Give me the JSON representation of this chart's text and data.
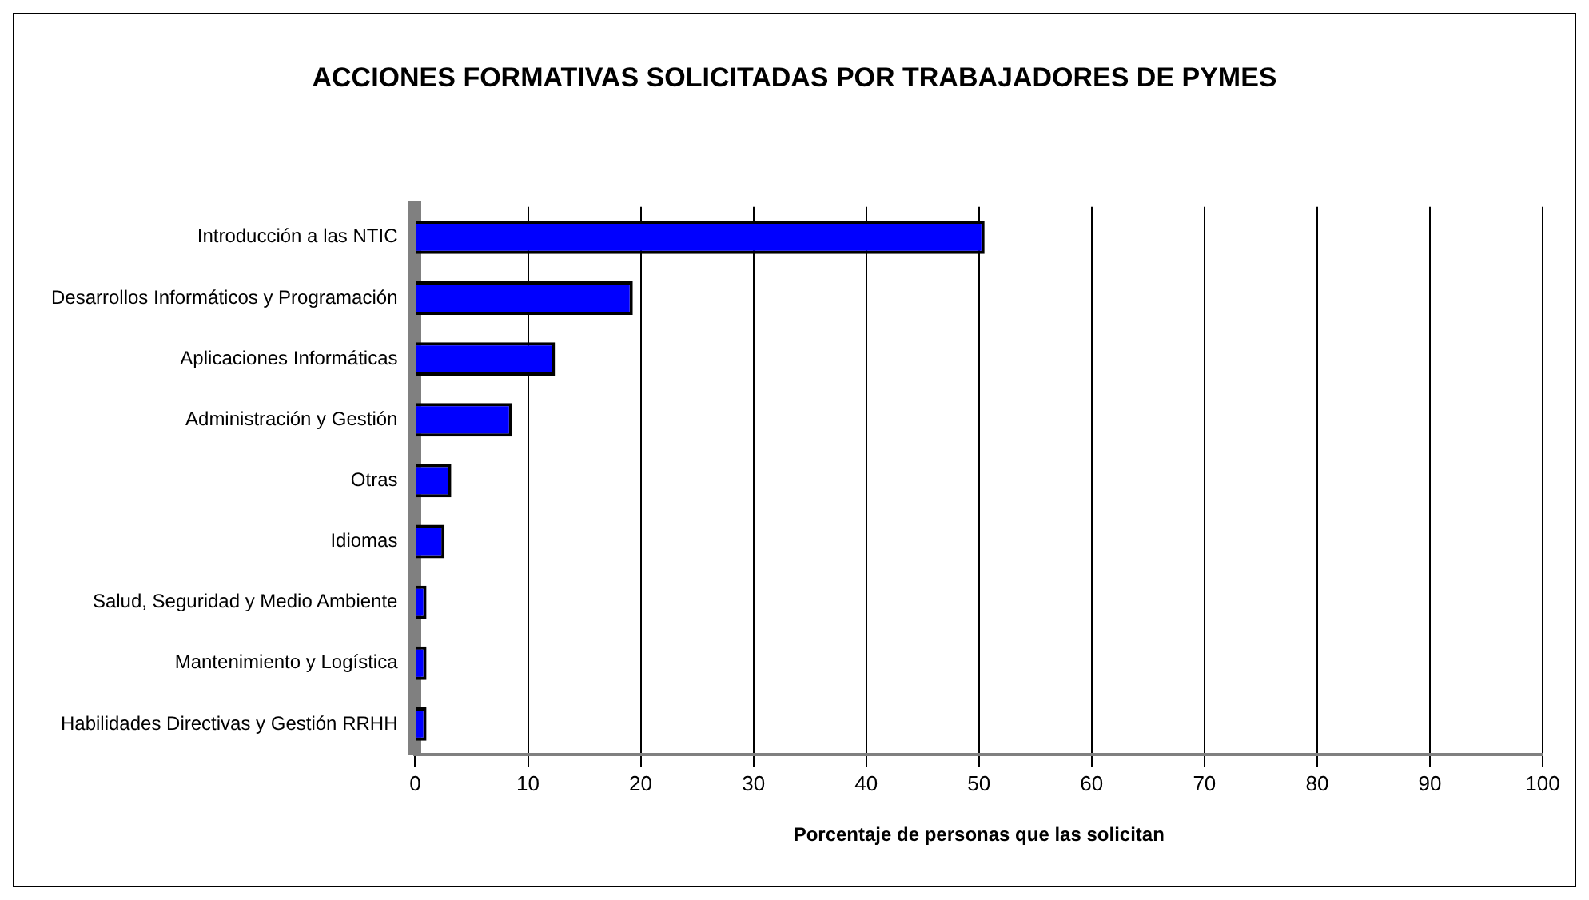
{
  "chart_data": {
    "type": "bar",
    "orientation": "horizontal",
    "title": "ACCIONES FORMATIVAS SOLICITADAS POR TRABAJADORES DE PYMES",
    "xlabel": "Porcentaje de personas que las solicitan",
    "categories": [
      "Introducción a las NTIC",
      "Desarrollos Informáticos y Programación",
      "Aplicaciones Informáticas",
      "Administración y Gestión",
      "Otras",
      "Idiomas",
      "Salud, Seguridad y Medio Ambiente",
      "Mantenimiento y Logística",
      "Habilidades Directivas y Gestión RRHH"
    ],
    "values": [
      50.5,
      19.3,
      12.4,
      8.6,
      3.2,
      2.6,
      1,
      1,
      1
    ],
    "color": "#0000ff",
    "xlim": [
      0,
      100
    ],
    "xticks": [
      0,
      10,
      20,
      30,
      40,
      50,
      60,
      70,
      80,
      90,
      100
    ],
    "grid": "x",
    "legend": false
  }
}
